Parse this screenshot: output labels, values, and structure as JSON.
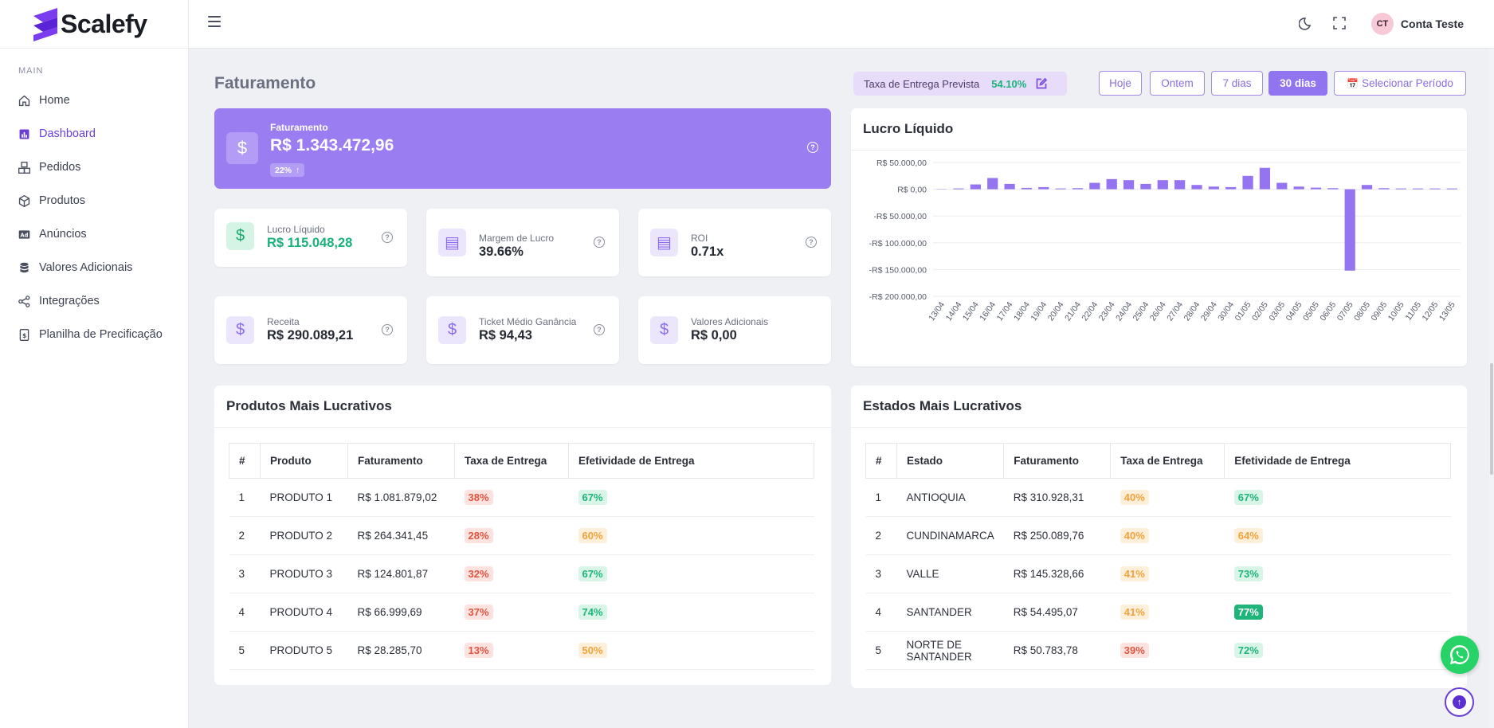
{
  "brand": {
    "name": "Scalefy"
  },
  "sidebar": {
    "section": "MAIN",
    "items": [
      {
        "label": "Home",
        "icon": "home-icon"
      },
      {
        "label": "Dashboard",
        "icon": "chart-icon",
        "active": true
      },
      {
        "label": "Pedidos",
        "icon": "boxes-icon"
      },
      {
        "label": "Produtos",
        "icon": "box-icon"
      },
      {
        "label": "Anúncios",
        "icon": "ad-icon"
      },
      {
        "label": "Valores Adicionais",
        "icon": "database-icon"
      },
      {
        "label": "Integrações",
        "icon": "share-icon"
      },
      {
        "label": "Planilha de Precificação",
        "icon": "spreadsheet-icon"
      }
    ]
  },
  "topbar": {
    "avatar_initials": "CT",
    "user_name": "Conta Teste"
  },
  "header": {
    "title": "Faturamento",
    "taxa_label": "Taxa de Entrega Prevista",
    "taxa_value": "54.10%",
    "periods": [
      "Hoje",
      "Ontem",
      "7 dias",
      "30 dias"
    ],
    "active_period": "30 dias",
    "select_period": "Selecionar Período"
  },
  "hero": {
    "label": "Faturamento",
    "value": "R$ 1.343.472,96",
    "badge": "22%"
  },
  "stats": {
    "lucro": {
      "label": "Lucro Líquido",
      "value": "R$ 115.048,28"
    },
    "margem": {
      "label": "Margem de Lucro",
      "value": "39.66%"
    },
    "roi": {
      "label": "ROI",
      "value": "0.71x"
    },
    "receita": {
      "label": "Receita",
      "value": "R$ 290.089,21"
    },
    "ticket": {
      "label": "Ticket Médio Ganância",
      "value": "R$ 94,43"
    },
    "adicionais": {
      "label": "Valores Adicionais",
      "value": "R$ 0,00"
    }
  },
  "chart_data": {
    "type": "bar",
    "title": "Lucro Líquido",
    "ylim": [
      -200000,
      50000
    ],
    "yticks": [
      50000,
      0,
      -50000,
      -100000,
      -150000,
      -200000
    ],
    "ytick_labels": [
      "R$ 50.000,00",
      "R$ 0,00",
      "-R$ 50.000,00",
      "-R$ 100.000,00",
      "-R$ 150.000,00",
      "-R$ 200.000,00"
    ],
    "categories": [
      "13/04",
      "14/04",
      "15/04",
      "16/04",
      "17/04",
      "18/04",
      "19/04",
      "20/04",
      "21/04",
      "22/04",
      "23/04",
      "24/04",
      "25/04",
      "26/04",
      "27/04",
      "28/04",
      "29/04",
      "30/04",
      "01/05",
      "02/05",
      "03/05",
      "04/05",
      "05/05",
      "06/05",
      "07/05",
      "08/05",
      "09/05",
      "10/05",
      "11/05",
      "12/05",
      "13/05"
    ],
    "values": [
      500,
      1500,
      9000,
      21000,
      10000,
      2500,
      4000,
      1500,
      2000,
      12000,
      19000,
      17000,
      10000,
      17000,
      17000,
      8000,
      5000,
      4000,
      25000,
      40000,
      12000,
      5000,
      3000,
      2000,
      -152000,
      8000,
      2000,
      0,
      0,
      0,
      0
    ],
    "grid": true,
    "color": "#9474f0"
  },
  "produtos": {
    "title": "Produtos Mais Lucrativos",
    "columns": [
      "#",
      "Produto",
      "Faturamento",
      "Taxa de Entrega",
      "Efetividade de Entrega"
    ],
    "rows": [
      {
        "n": "1",
        "name": "PRODUTO 1",
        "fat": "R$ 1.081.879,02",
        "taxa": "38%",
        "taxa_tone": "red",
        "efet": "67%",
        "efet_tone": "green"
      },
      {
        "n": "2",
        "name": "PRODUTO 2",
        "fat": "R$ 264.341,45",
        "taxa": "28%",
        "taxa_tone": "red",
        "efet": "60%",
        "efet_tone": "orange"
      },
      {
        "n": "3",
        "name": "PRODUTO 3",
        "fat": "R$ 124.801,87",
        "taxa": "32%",
        "taxa_tone": "red",
        "efet": "67%",
        "efet_tone": "green"
      },
      {
        "n": "4",
        "name": "PRODUTO 4",
        "fat": "R$ 66.999,69",
        "taxa": "37%",
        "taxa_tone": "red",
        "efet": "74%",
        "efet_tone": "green"
      },
      {
        "n": "5",
        "name": "PRODUTO 5",
        "fat": "R$ 28.285,70",
        "taxa": "13%",
        "taxa_tone": "red",
        "efet": "50%",
        "efet_tone": "orange"
      }
    ]
  },
  "estados": {
    "title": "Estados Mais Lucrativos",
    "columns": [
      "#",
      "Estado",
      "Faturamento",
      "Taxa de Entrega",
      "Efetividade de Entrega"
    ],
    "rows": [
      {
        "n": "1",
        "name": "ANTIOQUIA",
        "fat": "R$ 310.928,31",
        "taxa": "40%",
        "taxa_tone": "orange",
        "efet": "67%",
        "efet_tone": "green"
      },
      {
        "n": "2",
        "name": "CUNDINAMARCA",
        "fat": "R$ 250.089,76",
        "taxa": "40%",
        "taxa_tone": "orange",
        "efet": "64%",
        "efet_tone": "orange"
      },
      {
        "n": "3",
        "name": "VALLE",
        "fat": "R$ 145.328,66",
        "taxa": "41%",
        "taxa_tone": "orange",
        "efet": "73%",
        "efet_tone": "green"
      },
      {
        "n": "4",
        "name": "SANTANDER",
        "fat": "R$ 54.495,07",
        "taxa": "41%",
        "taxa_tone": "orange",
        "efet": "77%",
        "efet_tone": "solid-green"
      },
      {
        "n": "5",
        "name": "NORTE DE SANTANDER",
        "fat": "R$ 50.783,78",
        "taxa": "39%",
        "taxa_tone": "red",
        "efet": "72%",
        "efet_tone": "green"
      }
    ]
  },
  "colors": {
    "accent": "#9b7df2",
    "positive": "#18b27a",
    "whatsapp": "#27d366"
  }
}
